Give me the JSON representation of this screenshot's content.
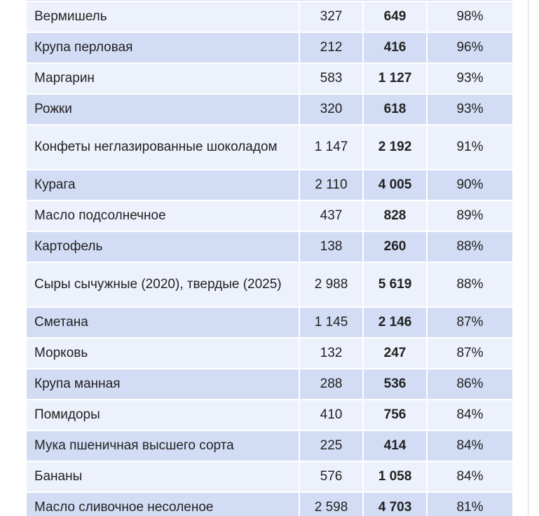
{
  "table": {
    "rows": [
      {
        "name": "Вермишель",
        "price_2020": "327",
        "price_2025": "649",
        "increase": "98%"
      },
      {
        "name": "Крупа перловая",
        "price_2020": "212",
        "price_2025": "416",
        "increase": "96%"
      },
      {
        "name": "Маргарин",
        "price_2020": "583",
        "price_2025": "1 127",
        "increase": "93%"
      },
      {
        "name": "Рожки",
        "price_2020": "320",
        "price_2025": "618",
        "increase": "93%"
      },
      {
        "name": "Конфеты неглазированные шоколадом",
        "price_2020": "1 147",
        "price_2025": "2 192",
        "increase": "91%"
      },
      {
        "name": "Курага",
        "price_2020": "2 110",
        "price_2025": "4 005",
        "increase": "90%"
      },
      {
        "name": "Масло подсолнечное",
        "price_2020": "437",
        "price_2025": "828",
        "increase": "89%"
      },
      {
        "name": "Картофель",
        "price_2020": "138",
        "price_2025": "260",
        "increase": "88%"
      },
      {
        "name": "Сыры сычужные (2020), твердые (2025)",
        "price_2020": "2 988",
        "price_2025": "5 619",
        "increase": "88%"
      },
      {
        "name": "Сметана",
        "price_2020": "1 145",
        "price_2025": "2 146",
        "increase": "87%"
      },
      {
        "name": "Морковь",
        "price_2020": "132",
        "price_2025": "247",
        "increase": "87%"
      },
      {
        "name": "Крупа манная",
        "price_2020": "288",
        "price_2025": "536",
        "increase": "86%"
      },
      {
        "name": "Помидоры",
        "price_2020": "410",
        "price_2025": "756",
        "increase": "84%"
      },
      {
        "name": "Мука пшеничная высшего сорта",
        "price_2020": "225",
        "price_2025": "414",
        "increase": "84%"
      },
      {
        "name": "Бананы",
        "price_2020": "576",
        "price_2025": "1 058",
        "increase": "84%"
      },
      {
        "name": "Масло сливочное несоленое",
        "price_2020": "2 598",
        "price_2025": "4 703",
        "increase": "81%"
      }
    ]
  }
}
